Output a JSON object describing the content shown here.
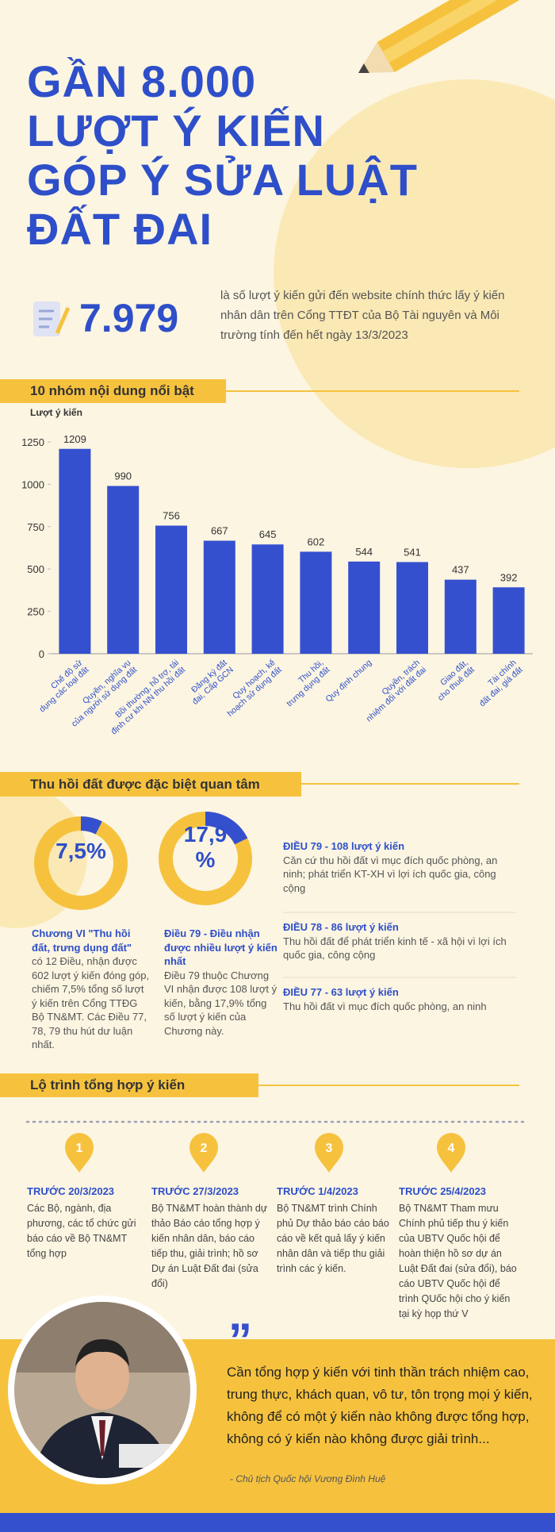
{
  "header": {
    "title": [
      "GẦN 8.000",
      "LƯỢT Ý KIẾN",
      "GÓP Ý SỬA LUẬT",
      "ĐẤT ĐAI"
    ]
  },
  "stat": {
    "number": "7.979",
    "text": "là số lượt ý kiến gửi đến website chính thức lấy ý kiến nhân dân trên Cổng TTĐT của Bộ Tài nguyên và Môi trường tính đến hết ngày 13/3/2023"
  },
  "chart_data": [
    {
      "type": "bar",
      "title": "10 nhóm nội dung nổi bật",
      "y_label": "Lượt ý kiến",
      "categories": [
        "Chế độ sử dụng các loại đất",
        "Quyền, nghĩa vụ của người sử dụng đất",
        "Bồi thường, hỗ trợ, tái định cư khi NN thu hồi đất",
        "Đăng ký đất đai, Cấp GCN",
        "Quy hoạch, kế hoạch sử dụng đất",
        "Thu hồi, trưng dụng đất",
        "Quy định chung",
        "Quyền, trách nhiệm đối với đất đai",
        "Giao đất, cho thuê đất",
        "Tài chính đất đai, giá đất"
      ],
      "values": [
        1209,
        990,
        756,
        667,
        645,
        602,
        544,
        541,
        437,
        392
      ],
      "color": "#3550cf",
      "ylim": [
        0,
        1250
      ],
      "yticks": [
        0,
        250,
        500,
        750,
        1000,
        1250
      ],
      "grid": false
    },
    {
      "type": "pie",
      "values": [
        7.5
      ],
      "value_labels": [
        "7,5%"
      ],
      "color": "#3550cf"
    },
    {
      "type": "pie",
      "values": [
        17.9
      ],
      "value_labels": [
        "17,9 %"
      ],
      "color": "#3550cf"
    }
  ],
  "section2": {
    "title": "Thu hồi đất được đặc biệt quan tâm",
    "notes": [
      {
        "heading": "Chương VI \"Thu hồi đất, trưng dụng đất\"",
        "body": "có 12 Điều, nhận được 602 lượt ý kiến đóng góp, chiếm 7,5% tổng số lượt ý kiến trên Cổng TTĐG Bộ TN&MT. Các Điều 77, 78, 79 thu hút dư luận nhất."
      },
      {
        "heading": "Điều 79 - Điều nhận được nhiều lượt ý kiến nhất",
        "body": "Điều 79 thuộc Chương VI nhận được 108 lượt ý kiến, bằng 17,9% tổng số lượt ý kiến của Chương này."
      }
    ],
    "articles": [
      {
        "heading": "ĐIỀU 79 - 108 lượt ý kiến",
        "body": "Căn cứ thu hồi đất vì mục đích quốc phòng, an ninh; phát triển KT-XH vì lợi ích quốc gia, công cộng"
      },
      {
        "heading": "ĐIỀU 78 - 86 lượt ý kiến",
        "body": "Thu hồi đất để phát triển kinh tế - xã hội vì lợi ích quốc gia, công cộng"
      },
      {
        "heading": "ĐIỀU 77 - 63 lượt ý kiến",
        "body": "Thu hồi đất vì mục đích quốc phòng, an ninh"
      }
    ]
  },
  "timeline": {
    "title": "Lộ trình tổng hợp ý kiến",
    "steps": [
      {
        "number": "1",
        "date": "TRƯỚC 20/3/2023",
        "body": "Các Bộ, ngành, địa phương, các tổ chức gửi báo cáo về Bộ TN&MT tổng hợp"
      },
      {
        "number": "2",
        "date": "TRƯỚC 27/3/2023",
        "body": "Bộ TN&MT hoàn thành dự thảo Báo cáo tổng hợp ý kiến nhân dân, báo cáo tiếp thu, giải trình; hồ sơ Dự án Luật Đất đai (sửa đổi)"
      },
      {
        "number": "3",
        "date": "TRƯỚC 1/4/2023",
        "body": "Bộ TN&MT trình Chính phủ Dự thảo báo cáo báo cáo về kết quả lấy ý kiến nhân dân và tiếp thu giải trình các ý kiến."
      },
      {
        "number": "4",
        "date": "TRƯỚC 25/4/2023",
        "body": "Bộ TN&MT Tham mưu Chính phủ tiếp thu ý kiến của UBTV Quốc hội để hoàn thiện hồ sơ dự án Luật Đất đai (sửa đổi), báo cáo UBTV Quốc hội để trình QUốc hội cho ý kiến tại kỳ họp thứ V"
      }
    ]
  },
  "quote": {
    "text": "Cần tổng hợp ý kiến với tinh thần trách nhiệm cao, trung thực, khách quan, vô tư, tôn trọng mọi ý kiến, không để có một ý kiến nào không được tổng hợp, không có ý kiến nào không được giải trình...",
    "author": "- Chủ tịch Quốc hội Vương Đình Huệ"
  }
}
